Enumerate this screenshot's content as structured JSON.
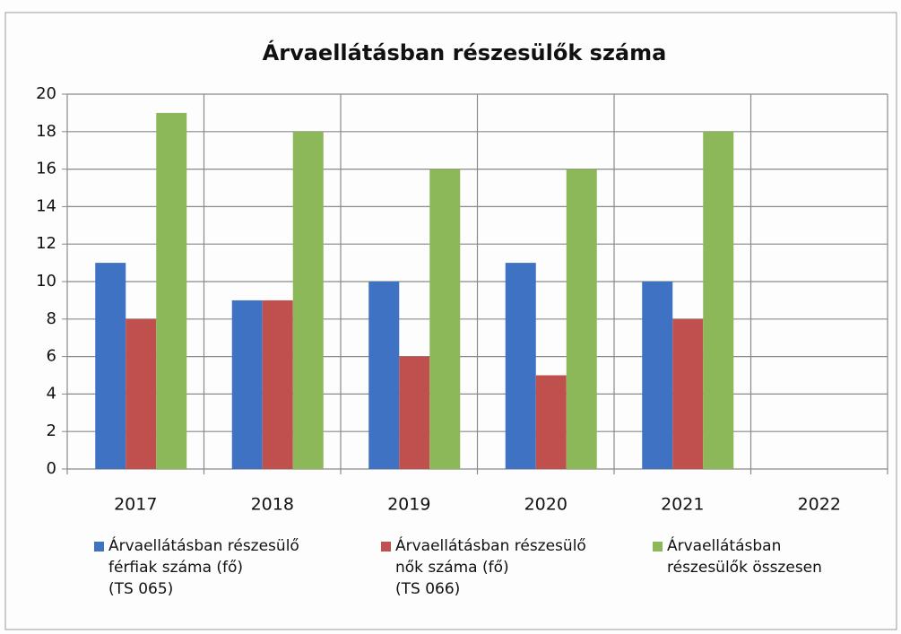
{
  "chart_data": {
    "type": "bar",
    "title": "Árvaellátásban részesülők száma",
    "categories": [
      "2017",
      "2018",
      "2019",
      "2020",
      "2021",
      "2022"
    ],
    "series": [
      {
        "name": "Árvaellátásban részesülő\nférfiak száma (fő)\n(TS 065)",
        "color": "#3f72c2",
        "values": [
          11,
          9,
          10,
          11,
          10,
          null
        ]
      },
      {
        "name": "Árvaellátásban részesülő\nnők száma (fő)\n(TS 066)",
        "color": "#c0504d",
        "values": [
          8,
          9,
          6,
          5,
          8,
          null
        ]
      },
      {
        "name": "Árvaellátásban\nrészesülők összesen",
        "color": "#8db85a",
        "values": [
          19,
          18,
          16,
          16,
          18,
          null
        ]
      }
    ],
    "ylim": [
      0,
      20
    ],
    "yticks": [
      0,
      2,
      4,
      6,
      8,
      10,
      12,
      14,
      16,
      18,
      20
    ],
    "grid": true,
    "legend": "bottom"
  }
}
